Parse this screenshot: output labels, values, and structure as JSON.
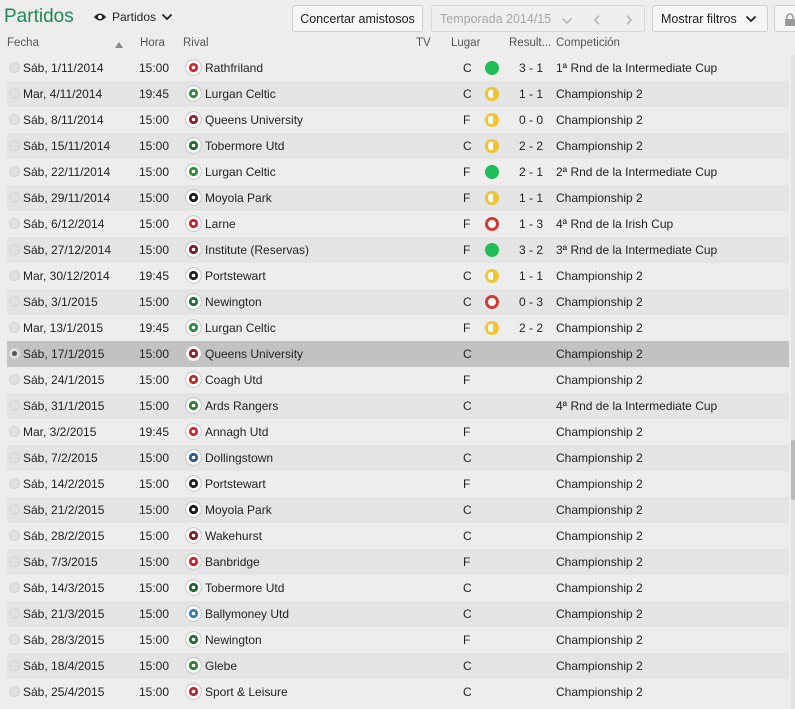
{
  "header": {
    "title": "Partidos",
    "view_dropdown": "Partidos",
    "arrange_button": "Concertar amistosos",
    "season": "Temporada 2014/15",
    "filters_button": "Mostrar filtros"
  },
  "columns": {
    "date": "Fecha",
    "time": "Hora",
    "rival": "Rival",
    "tv": "TV",
    "venue": "Lugar",
    "result": "Result...",
    "competition": "Competición"
  },
  "colors": {
    "title": "#1f8a57",
    "win": "#1fbe54",
    "draw": "#f0c52f",
    "loss": "#d23a3a",
    "selected_row": "#c2c2c2"
  },
  "matches": [
    {
      "date": "Sáb, 1/11/2014",
      "time": "15:00",
      "rival": "Rathfriland",
      "venue": "C",
      "result": "win",
      "score": "3 - 1",
      "competition": "1ª Rnd de la Intermediate Cup",
      "crest": "#d6242c"
    },
    {
      "date": "Mar, 4/11/2014",
      "time": "19:45",
      "rival": "Lurgan Celtic",
      "venue": "C",
      "result": "draw",
      "score": "1 - 1",
      "competition": "Championship 2",
      "crest": "#2e8b3e"
    },
    {
      "date": "Sáb, 8/11/2014",
      "time": "15:00",
      "rival": "Queens University",
      "venue": "F",
      "result": "draw",
      "score": "0 - 0",
      "competition": "Championship 2",
      "crest": "#8a1f2a"
    },
    {
      "date": "Sáb, 15/11/2014",
      "time": "15:00",
      "rival": "Tobermore Utd",
      "venue": "C",
      "result": "draw",
      "score": "2 - 2",
      "competition": "Championship 2",
      "crest": "#1a6b2a"
    },
    {
      "date": "Sáb, 22/11/2014",
      "time": "15:00",
      "rival": "Lurgan Celtic",
      "venue": "F",
      "result": "win",
      "score": "2 - 1",
      "competition": "2ª Rnd de la Intermediate Cup",
      "crest": "#2e8b3e"
    },
    {
      "date": "Sáb, 29/11/2014",
      "time": "15:00",
      "rival": "Moyola Park",
      "venue": "F",
      "result": "draw",
      "score": "1 - 1",
      "competition": "Championship 2",
      "crest": "#1b1b1b"
    },
    {
      "date": "Sáb, 6/12/2014",
      "time": "15:00",
      "rival": "Larne",
      "venue": "F",
      "result": "loss",
      "score": "1 - 3",
      "competition": "4ª Rnd de la Irish Cup",
      "crest": "#c8202b"
    },
    {
      "date": "Sáb, 27/12/2014",
      "time": "15:00",
      "rival": "Institute (Reservas)",
      "venue": "F",
      "result": "win",
      "score": "3 - 2",
      "competition": "3ª Rnd de la Intermediate Cup",
      "crest": "#7a1b2a"
    },
    {
      "date": "Mar, 30/12/2014",
      "time": "19:45",
      "rival": "Portstewart",
      "venue": "C",
      "result": "draw",
      "score": "1 - 1",
      "competition": "Championship 2",
      "crest": "#222222"
    },
    {
      "date": "Sáb, 3/1/2015",
      "time": "15:00",
      "rival": "Newington",
      "venue": "C",
      "result": "loss",
      "score": "0 - 3",
      "competition": "Championship 2",
      "crest": "#1d6e3b"
    },
    {
      "date": "Mar, 13/1/2015",
      "time": "19:45",
      "rival": "Lurgan Celtic",
      "venue": "F",
      "result": "draw",
      "score": "2 - 2",
      "competition": "Championship 2",
      "crest": "#2e8b3e"
    },
    {
      "date": "Sáb, 17/1/2015",
      "time": "15:00",
      "rival": "Queens University",
      "venue": "C",
      "result": "",
      "score": "",
      "competition": "Championship 2",
      "crest": "#8a1f2a",
      "selected": true
    },
    {
      "date": "Sáb, 24/1/2015",
      "time": "15:00",
      "rival": "Coagh Utd",
      "venue": "F",
      "result": "",
      "score": "",
      "competition": "Championship 2",
      "crest": "#b92a2a"
    },
    {
      "date": "Sáb, 31/1/2015",
      "time": "15:00",
      "rival": "Ards Rangers",
      "venue": "C",
      "result": "",
      "score": "",
      "competition": "4ª Rnd de la Intermediate Cup",
      "crest": "#2f7d32"
    },
    {
      "date": "Mar, 3/2/2015",
      "time": "19:45",
      "rival": "Annagh Utd",
      "venue": "F",
      "result": "",
      "score": "",
      "competition": "Championship 2",
      "crest": "#c62b2b"
    },
    {
      "date": "Sáb, 7/2/2015",
      "time": "15:00",
      "rival": "Dollingstown",
      "venue": "C",
      "result": "",
      "score": "",
      "competition": "Championship 2",
      "crest": "#2a5a8a"
    },
    {
      "date": "Sáb, 14/2/2015",
      "time": "15:00",
      "rival": "Portstewart",
      "venue": "F",
      "result": "",
      "score": "",
      "competition": "Championship 2",
      "crest": "#222222"
    },
    {
      "date": "Sáb, 21/2/2015",
      "time": "15:00",
      "rival": "Moyola Park",
      "venue": "C",
      "result": "",
      "score": "",
      "competition": "Championship 2",
      "crest": "#1b1b1b"
    },
    {
      "date": "Sáb, 28/2/2015",
      "time": "15:00",
      "rival": "Wakehurst",
      "venue": "C",
      "result": "",
      "score": "",
      "competition": "Championship 2",
      "crest": "#7a1f1f"
    },
    {
      "date": "Sáb, 7/3/2015",
      "time": "15:00",
      "rival": "Banbridge",
      "venue": "F",
      "result": "",
      "score": "",
      "competition": "Championship 2",
      "crest": "#c8202b"
    },
    {
      "date": "Sáb, 14/3/2015",
      "time": "15:00",
      "rival": "Tobermore Utd",
      "venue": "C",
      "result": "",
      "score": "",
      "competition": "Championship 2",
      "crest": "#1a6b2a"
    },
    {
      "date": "Sáb, 21/3/2015",
      "time": "15:00",
      "rival": "Ballymoney Utd",
      "venue": "C",
      "result": "",
      "score": "",
      "competition": "Championship 2",
      "crest": "#3a7bbf"
    },
    {
      "date": "Sáb, 28/3/2015",
      "time": "15:00",
      "rival": "Newington",
      "venue": "F",
      "result": "",
      "score": "",
      "competition": "Championship 2",
      "crest": "#1d6e3b"
    },
    {
      "date": "Sáb, 18/4/2015",
      "time": "15:00",
      "rival": "Glebe",
      "venue": "C",
      "result": "",
      "score": "",
      "competition": "Championship 2",
      "crest": "#2e7d32"
    },
    {
      "date": "Sáb, 25/4/2015",
      "time": "15:00",
      "rival": "Sport & Leisure",
      "venue": "C",
      "result": "",
      "score": "",
      "competition": "Championship 2",
      "crest": "#b5282e"
    }
  ]
}
